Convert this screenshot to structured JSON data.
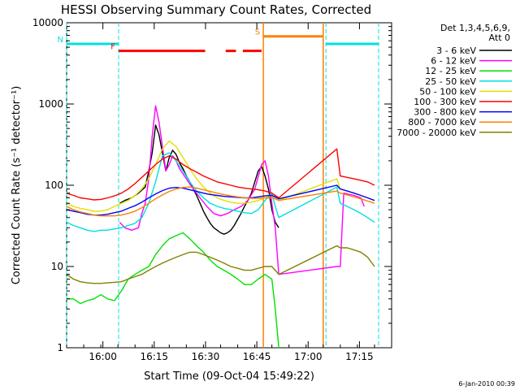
{
  "chart_data": {
    "type": "line",
    "title": "HESSI Observing Summary Count Rates, Corrected",
    "xlabel": "Start Time (09-Oct-04 15:49:22)",
    "ylabel": "Corrected Count Rate (s⁻¹ detector⁻¹)",
    "yscale": "log",
    "xlim_minutes_after_1549": [
      0,
      95
    ],
    "ylim": [
      1,
      10000
    ],
    "x_ticks": [
      {
        "label": "16:00",
        "min": 10.6
      },
      {
        "label": "16:15",
        "min": 25.6
      },
      {
        "label": "16:30",
        "min": 40.6
      },
      {
        "label": "16:45",
        "min": 55.6
      },
      {
        "label": "17:00",
        "min": 70.6
      },
      {
        "label": "17:15",
        "min": 85.6
      }
    ],
    "y_ticks": [
      {
        "label": "1",
        "value": 1
      },
      {
        "label": "10",
        "value": 10
      },
      {
        "label": "100",
        "value": 100
      },
      {
        "label": "1000",
        "value": 1000
      },
      {
        "label": "10000",
        "value": 10000
      }
    ],
    "legend": {
      "header1": "Det 1,3,4,5,6,9,",
      "header2": "Att 0",
      "position": "right",
      "entries": [
        {
          "label": "3 - 6 keV",
          "color": "#000000"
        },
        {
          "label": "6 - 12 keV",
          "color": "#ff00ff"
        },
        {
          "label": "12 - 25 keV",
          "color": "#00e000"
        },
        {
          "label": "25 - 50 keV",
          "color": "#00e0e0"
        },
        {
          "label": "50 - 100 keV",
          "color": "#e0e000"
        },
        {
          "label": "100 - 300 keV",
          "color": "#ff0000"
        },
        {
          "label": "300 - 800 keV",
          "color": "#0000ff"
        },
        {
          "label": "800 - 7000 keV",
          "color": "#ff8000"
        },
        {
          "label": "7000 - 20000 keV",
          "color": "#808000"
        }
      ]
    },
    "flags": [
      {
        "label": "N",
        "color": "#00e0e0",
        "y": 5500,
        "segments": [
          [
            0,
            15.2
          ],
          [
            75.8,
            91.2
          ]
        ]
      },
      {
        "label": "F",
        "color": "#ff0000",
        "y": 4500,
        "segments": [
          [
            15.2,
            40.5
          ],
          [
            46.5,
            49.5
          ],
          [
            51.5,
            57.0
          ]
        ]
      },
      {
        "label": "S",
        "color": "#ff8000",
        "y": 6800,
        "segments": [
          [
            57.5,
            75.0
          ]
        ]
      }
    ],
    "night_lines_min": [
      0,
      15.2,
      75.8,
      91.2
    ],
    "saa_lines_min": [
      57.5,
      75.0
    ],
    "series": [
      {
        "name": "3 - 6 keV",
        "color": "#000000",
        "x": [
          15.5,
          17,
          19,
          21,
          23,
          24,
          25,
          26,
          27,
          28,
          29,
          30,
          31,
          32,
          33,
          34,
          35,
          36,
          37,
          38,
          39,
          40,
          41,
          42,
          43,
          44,
          45,
          46,
          47,
          48,
          49,
          50,
          51,
          52,
          53,
          54,
          55,
          56,
          57,
          58,
          59,
          60,
          61,
          62
        ],
        "y": [
          60,
          65,
          70,
          80,
          95,
          150,
          250,
          550,
          420,
          250,
          150,
          220,
          270,
          240,
          190,
          160,
          130,
          110,
          90,
          75,
          60,
          48,
          40,
          34,
          30,
          28,
          26,
          25,
          26,
          28,
          32,
          38,
          45,
          55,
          65,
          80,
          110,
          150,
          170,
          130,
          90,
          50,
          35,
          30
        ]
      },
      {
        "name": "6 - 12 keV",
        "color": "#ff00ff",
        "x": [
          15.5,
          17,
          19,
          21,
          22,
          23,
          24,
          25,
          26,
          27,
          28,
          29,
          30,
          31,
          32,
          33,
          35,
          37,
          39,
          41,
          43,
          45,
          47,
          49,
          51,
          53,
          55,
          57,
          58,
          59,
          60,
          61,
          62,
          79,
          79.5,
          80,
          81,
          84,
          86,
          87
        ],
        "y": [
          35,
          30,
          28,
          30,
          45,
          60,
          120,
          400,
          950,
          600,
          300,
          150,
          180,
          230,
          200,
          160,
          120,
          90,
          70,
          55,
          45,
          42,
          45,
          50,
          55,
          65,
          90,
          180,
          200,
          130,
          60,
          30,
          8,
          10,
          10,
          10,
          80,
          75,
          70,
          55
        ]
      },
      {
        "name": "12 - 25 keV",
        "color": "#00e000",
        "x": [
          0,
          2,
          4,
          6,
          8,
          10,
          12,
          14,
          16,
          18,
          20,
          22,
          24,
          26,
          28,
          30,
          32,
          34,
          36,
          38,
          40,
          42,
          44,
          46,
          48,
          50,
          52,
          54,
          56,
          58,
          60,
          61,
          62
        ],
        "y": [
          4,
          4,
          3.5,
          3.8,
          4,
          4.5,
          4,
          3.8,
          5,
          7,
          8,
          9,
          10,
          14,
          18,
          22,
          24,
          26,
          22,
          18,
          15,
          12,
          10,
          9,
          8,
          7,
          6,
          6,
          7,
          8,
          7,
          3,
          1
        ]
      },
      {
        "name": "25 - 50 keV",
        "color": "#00e0e0",
        "x": [
          0,
          2,
          4,
          6,
          8,
          10,
          12,
          14,
          16,
          18,
          20,
          22,
          24,
          26,
          28,
          30,
          32,
          34,
          36,
          38,
          40,
          42,
          44,
          46,
          48,
          50,
          52,
          54,
          56,
          58,
          60,
          61,
          62,
          79,
          80,
          82,
          84,
          86,
          88,
          90
        ],
        "y": [
          35,
          32,
          30,
          28,
          27,
          28,
          28,
          29,
          30,
          32,
          34,
          40,
          60,
          110,
          230,
          250,
          200,
          150,
          110,
          85,
          70,
          60,
          55,
          52,
          50,
          48,
          46,
          45,
          50,
          65,
          80,
          55,
          40,
          95,
          60,
          55,
          50,
          45,
          40,
          35
        ]
      },
      {
        "name": "50 - 100 keV",
        "color": "#e0e000",
        "x": [
          0,
          2,
          4,
          6,
          8,
          10,
          12,
          14,
          16,
          18,
          20,
          22,
          24,
          26,
          28,
          30,
          32,
          34,
          36,
          38,
          40,
          42,
          44,
          46,
          48,
          50,
          52,
          54,
          56,
          58,
          60,
          61,
          62,
          79,
          80,
          82,
          84,
          86,
          88,
          90
        ],
        "y": [
          60,
          55,
          52,
          50,
          48,
          48,
          50,
          55,
          60,
          65,
          75,
          90,
          120,
          180,
          280,
          350,
          300,
          220,
          160,
          120,
          95,
          80,
          70,
          65,
          62,
          60,
          60,
          62,
          65,
          70,
          75,
          70,
          65,
          120,
          90,
          85,
          80,
          75,
          70,
          65
        ]
      },
      {
        "name": "100 - 300 keV",
        "color": "#ff0000",
        "x": [
          0,
          2,
          4,
          6,
          8,
          10,
          12,
          14,
          16,
          18,
          20,
          22,
          24,
          26,
          28,
          30,
          32,
          34,
          36,
          38,
          40,
          42,
          44,
          46,
          48,
          50,
          52,
          54,
          56,
          58,
          60,
          61,
          62,
          79,
          80,
          82,
          84,
          86,
          88,
          90
        ],
        "y": [
          80,
          75,
          70,
          68,
          66,
          67,
          70,
          74,
          80,
          90,
          105,
          125,
          150,
          180,
          210,
          230,
          210,
          180,
          160,
          145,
          130,
          120,
          110,
          105,
          100,
          95,
          92,
          90,
          88,
          85,
          80,
          75,
          70,
          280,
          130,
          125,
          120,
          115,
          110,
          100
        ]
      },
      {
        "name": "300 - 800 keV",
        "color": "#0000ff",
        "x": [
          0,
          2,
          4,
          6,
          8,
          10,
          12,
          14,
          16,
          18,
          20,
          22,
          24,
          26,
          28,
          30,
          32,
          34,
          36,
          38,
          40,
          42,
          44,
          46,
          48,
          50,
          52,
          54,
          56,
          58,
          60,
          61,
          62,
          79,
          80,
          82,
          84,
          86,
          88,
          90
        ],
        "y": [
          50,
          48,
          46,
          44,
          43,
          43,
          44,
          46,
          48,
          52,
          56,
          62,
          70,
          78,
          86,
          92,
          94,
          92,
          88,
          84,
          80,
          77,
          75,
          73,
          72,
          71,
          70,
          70,
          72,
          74,
          75,
          72,
          68,
          100,
          90,
          85,
          80,
          75,
          70,
          65
        ]
      },
      {
        "name": "800 - 7000 keV",
        "color": "#ff8000",
        "x": [
          0,
          2,
          4,
          6,
          8,
          10,
          12,
          14,
          16,
          18,
          20,
          22,
          24,
          26,
          28,
          30,
          32,
          34,
          36,
          38,
          40,
          42,
          44,
          46,
          48,
          50,
          52,
          54,
          56,
          58,
          60,
          61,
          62,
          79,
          80,
          82,
          84,
          86,
          88,
          90
        ],
        "y": [
          55,
          50,
          47,
          45,
          43,
          42,
          42,
          42,
          43,
          45,
          48,
          53,
          60,
          68,
          76,
          84,
          90,
          94,
          95,
          92,
          88,
          84,
          80,
          77,
          74,
          72,
          70,
          69,
          69,
          70,
          70,
          68,
          65,
          85,
          80,
          76,
          72,
          68,
          64,
          60
        ]
      },
      {
        "name": "7000 - 20000 keV",
        "color": "#808000",
        "x": [
          0,
          2,
          4,
          6,
          8,
          10,
          12,
          14,
          16,
          18,
          20,
          22,
          24,
          26,
          28,
          30,
          32,
          34,
          36,
          38,
          40,
          42,
          44,
          46,
          48,
          50,
          52,
          54,
          56,
          58,
          60,
          61,
          62,
          79,
          80,
          82,
          84,
          86,
          88,
          90
        ],
        "y": [
          8,
          7,
          6.5,
          6.3,
          6.2,
          6.2,
          6.3,
          6.4,
          6.5,
          7,
          7.5,
          8,
          9,
          10,
          11,
          12,
          13,
          14,
          15,
          15,
          14,
          13,
          12,
          11,
          10,
          9.5,
          9,
          9,
          9.5,
          10,
          10,
          9,
          8,
          18,
          17,
          17,
          16,
          15,
          13,
          10
        ]
      }
    ],
    "grid": false
  },
  "footer": {
    "timestamp": "6-Jan-2010 00:39"
  }
}
